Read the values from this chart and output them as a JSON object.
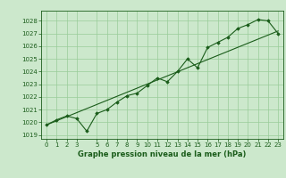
{
  "title": "Graphe pression niveau de la mer (hPa)",
  "bg_color": "#cce8cc",
  "grid_color": "#99cc99",
  "line_color": "#1a5c1a",
  "marker_color": "#1a5c1a",
  "xlim": [
    -0.5,
    23.5
  ],
  "ylim": [
    1018.7,
    1028.8
  ],
  "xticks": [
    0,
    1,
    2,
    3,
    5,
    6,
    7,
    8,
    9,
    10,
    11,
    12,
    13,
    14,
    15,
    16,
    17,
    18,
    19,
    20,
    21,
    22,
    23
  ],
  "yticks": [
    1019,
    1020,
    1021,
    1022,
    1023,
    1024,
    1025,
    1026,
    1027,
    1028
  ],
  "hours": [
    0,
    1,
    2,
    3,
    4,
    5,
    6,
    7,
    8,
    9,
    10,
    11,
    12,
    13,
    14,
    15,
    16,
    17,
    18,
    19,
    20,
    21,
    22,
    23
  ],
  "pressure": [
    1019.8,
    1020.2,
    1020.5,
    1020.3,
    1019.3,
    1020.7,
    1021.0,
    1021.6,
    1022.1,
    1022.3,
    1022.9,
    1023.5,
    1023.2,
    1024.0,
    1025.0,
    1024.3,
    1025.9,
    1026.3,
    1026.7,
    1027.4,
    1027.7,
    1028.1,
    1028.0,
    1027.0
  ],
  "trend_x": [
    0,
    23
  ],
  "trend_y": [
    1019.8,
    1027.2
  ]
}
